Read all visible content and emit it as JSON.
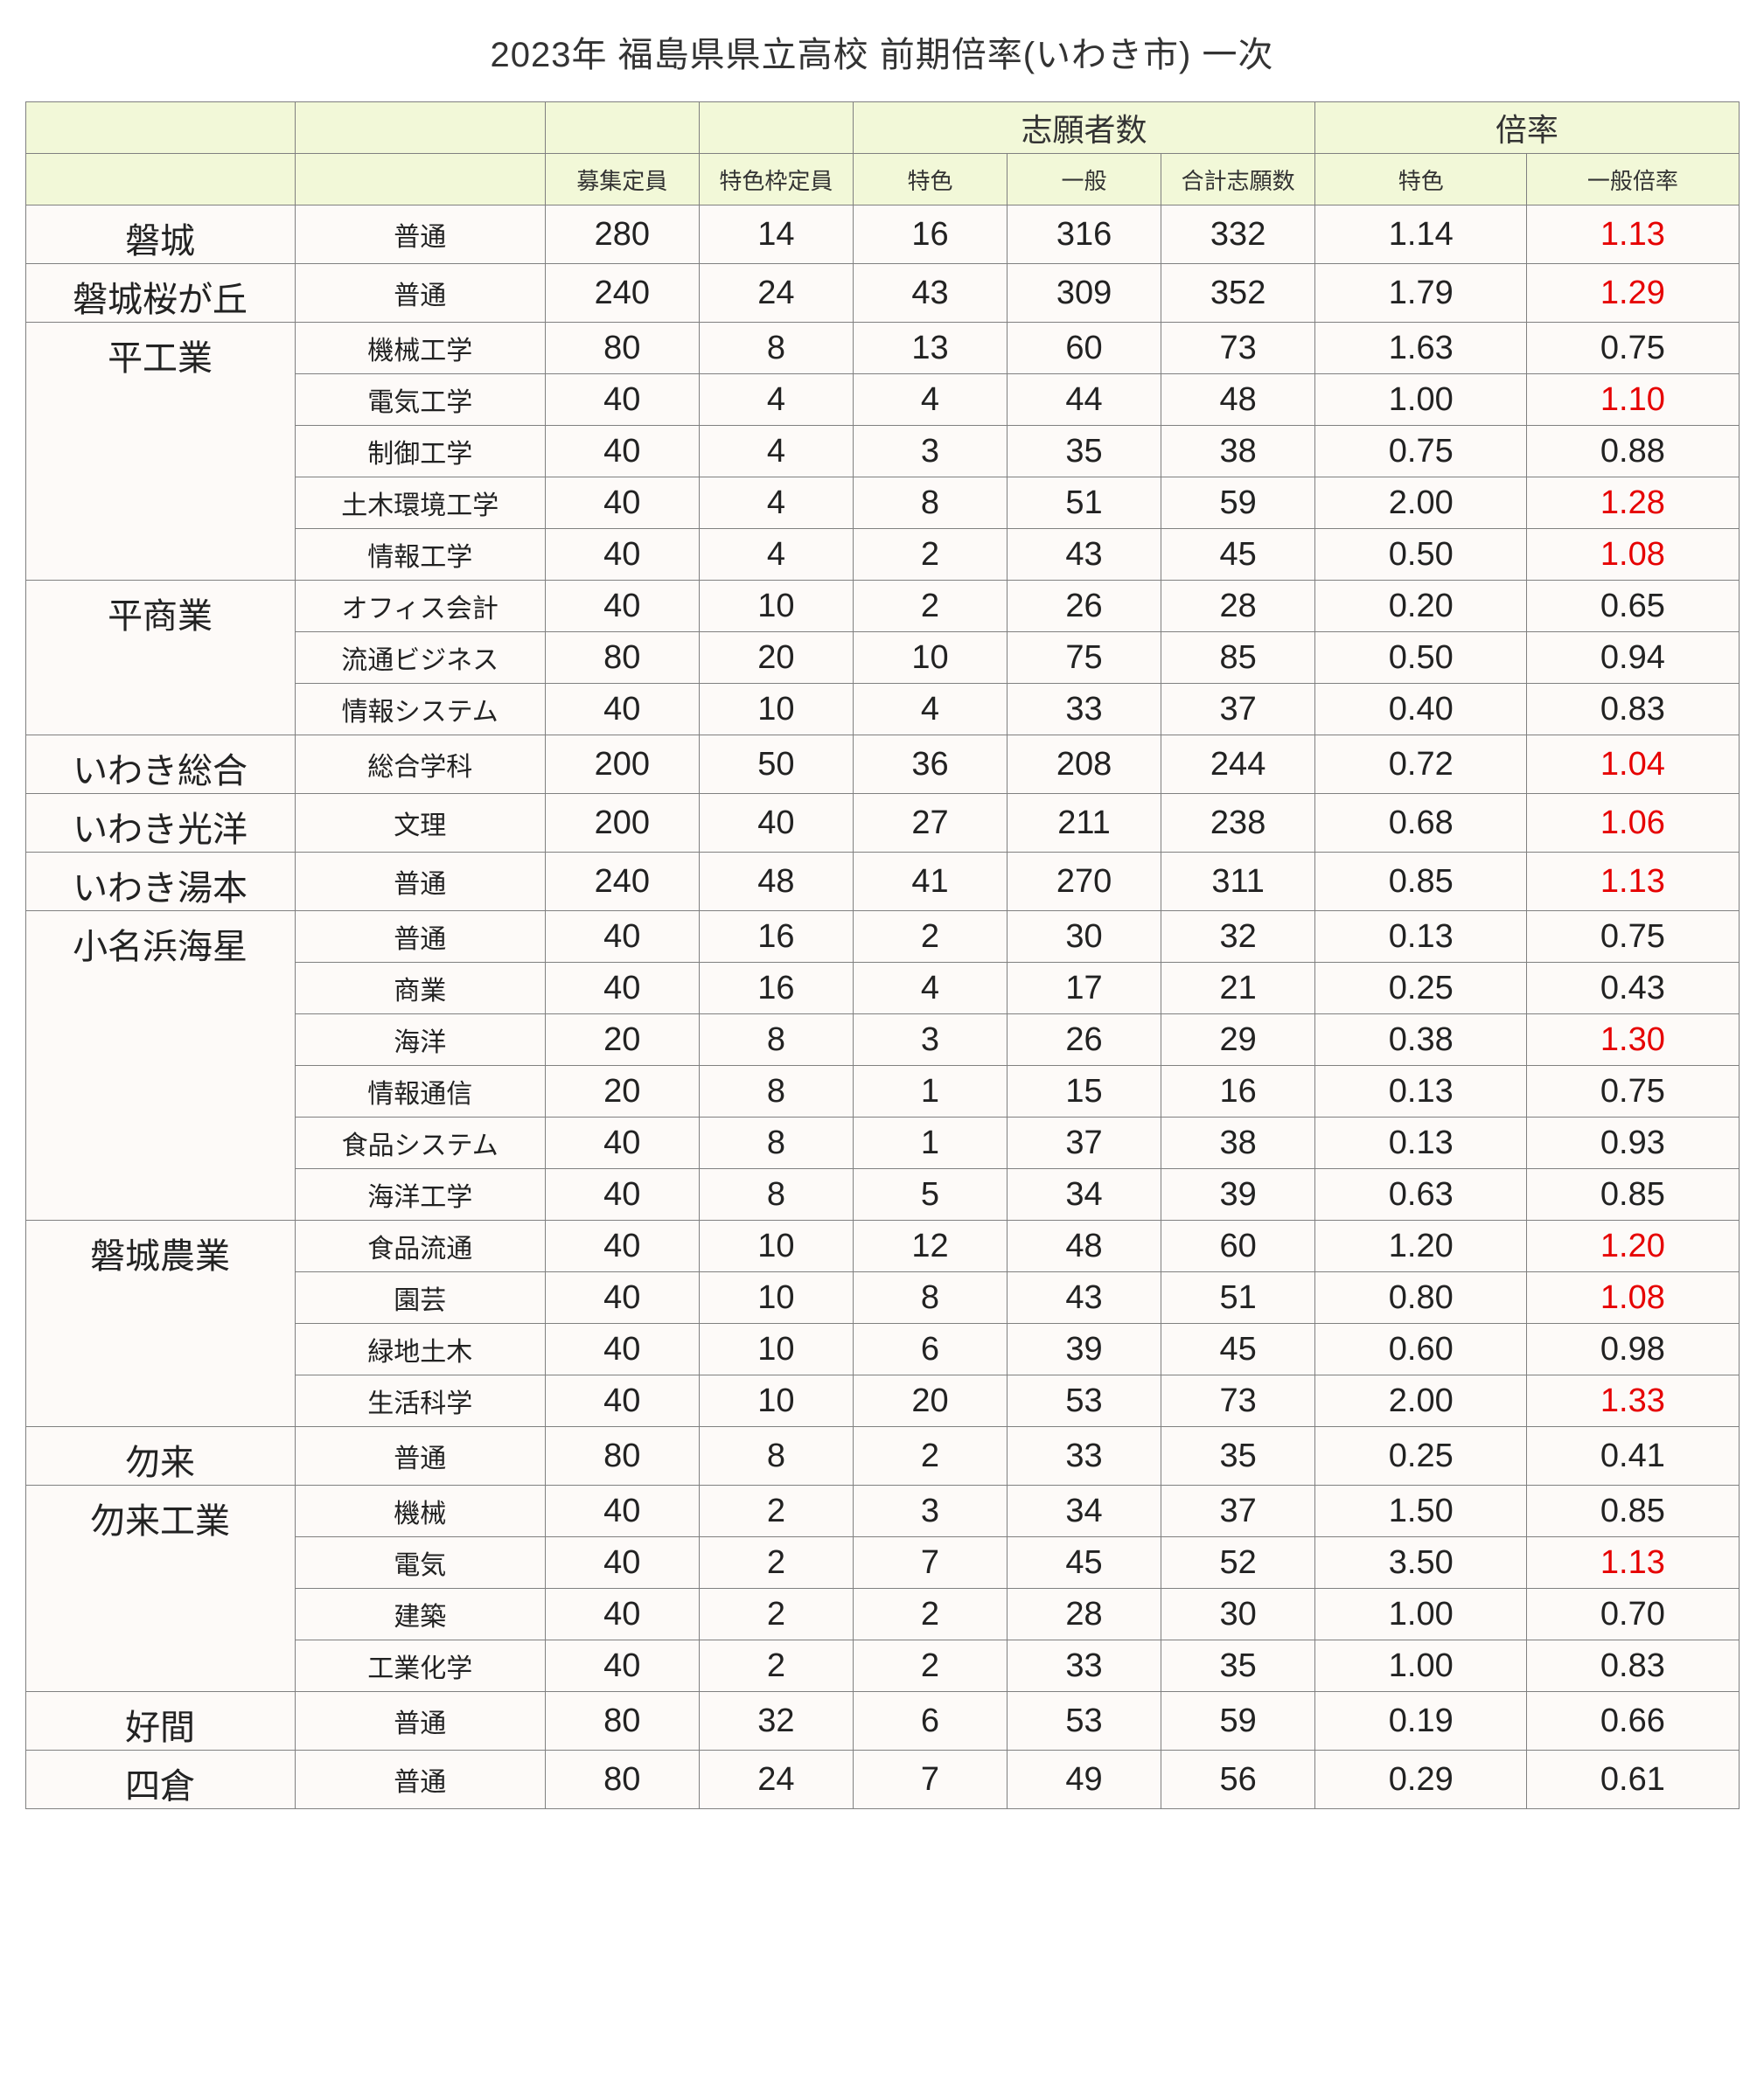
{
  "title": "2023年  福島県県立高校  前期倍率(いわき市) 一次",
  "header": {
    "group_applicants": "志願者数",
    "group_ratio": "倍率",
    "capacity": "募集定員",
    "special_capacity": "特色枠定員",
    "special_apps": "特色",
    "general_apps": "一般",
    "total_apps": "合計志願数",
    "special_ratio": "特色",
    "general_ratio": "一般倍率"
  },
  "colors": {
    "header_bg": "#f2f8d8",
    "row_bg": "#fdfaf8",
    "border": "#808080",
    "text": "#222222",
    "highlight": "#e60000"
  },
  "rows": [
    {
      "school": "磐城",
      "dept": "普通",
      "cap": "280",
      "scap": "14",
      "sapp": "16",
      "gapp": "316",
      "tapp": "332",
      "srat": "1.14",
      "grat": "1.13",
      "grat_red": true,
      "rowspan": 1
    },
    {
      "school": "磐城桜が丘",
      "dept": "普通",
      "cap": "240",
      "scap": "24",
      "sapp": "43",
      "gapp": "309",
      "tapp": "352",
      "srat": "1.79",
      "grat": "1.29",
      "grat_red": true,
      "rowspan": 1
    },
    {
      "school": "平工業",
      "dept": "機械工学",
      "cap": "80",
      "scap": "8",
      "sapp": "13",
      "gapp": "60",
      "tapp": "73",
      "srat": "1.63",
      "grat": "0.75",
      "grat_red": false,
      "rowspan": 5
    },
    {
      "school": "",
      "dept": "電気工学",
      "cap": "40",
      "scap": "4",
      "sapp": "4",
      "gapp": "44",
      "tapp": "48",
      "srat": "1.00",
      "grat": "1.10",
      "grat_red": true,
      "rowspan": 0
    },
    {
      "school": "",
      "dept": "制御工学",
      "cap": "40",
      "scap": "4",
      "sapp": "3",
      "gapp": "35",
      "tapp": "38",
      "srat": "0.75",
      "grat": "0.88",
      "grat_red": false,
      "rowspan": 0
    },
    {
      "school": "",
      "dept": "土木環境工学",
      "cap": "40",
      "scap": "4",
      "sapp": "8",
      "gapp": "51",
      "tapp": "59",
      "srat": "2.00",
      "grat": "1.28",
      "grat_red": true,
      "rowspan": 0
    },
    {
      "school": "",
      "dept": "情報工学",
      "cap": "40",
      "scap": "4",
      "sapp": "2",
      "gapp": "43",
      "tapp": "45",
      "srat": "0.50",
      "grat": "1.08",
      "grat_red": true,
      "rowspan": 0
    },
    {
      "school": "平商業",
      "dept": "オフィス会計",
      "cap": "40",
      "scap": "10",
      "sapp": "2",
      "gapp": "26",
      "tapp": "28",
      "srat": "0.20",
      "grat": "0.65",
      "grat_red": false,
      "rowspan": 3
    },
    {
      "school": "",
      "dept": "流通ビジネス",
      "cap": "80",
      "scap": "20",
      "sapp": "10",
      "gapp": "75",
      "tapp": "85",
      "srat": "0.50",
      "grat": "0.94",
      "grat_red": false,
      "rowspan": 0
    },
    {
      "school": "",
      "dept": "情報システム",
      "cap": "40",
      "scap": "10",
      "sapp": "4",
      "gapp": "33",
      "tapp": "37",
      "srat": "0.40",
      "grat": "0.83",
      "grat_red": false,
      "rowspan": 0
    },
    {
      "school": "いわき総合",
      "dept": "総合学科",
      "cap": "200",
      "scap": "50",
      "sapp": "36",
      "gapp": "208",
      "tapp": "244",
      "srat": "0.72",
      "grat": "1.04",
      "grat_red": true,
      "rowspan": 1
    },
    {
      "school": "いわき光洋",
      "dept": "文理",
      "cap": "200",
      "scap": "40",
      "sapp": "27",
      "gapp": "211",
      "tapp": "238",
      "srat": "0.68",
      "grat": "1.06",
      "grat_red": true,
      "rowspan": 1
    },
    {
      "school": "いわき湯本",
      "dept": "普通",
      "cap": "240",
      "scap": "48",
      "sapp": "41",
      "gapp": "270",
      "tapp": "311",
      "srat": "0.85",
      "grat": "1.13",
      "grat_red": true,
      "rowspan": 1
    },
    {
      "school": "小名浜海星",
      "dept": "普通",
      "cap": "40",
      "scap": "16",
      "sapp": "2",
      "gapp": "30",
      "tapp": "32",
      "srat": "0.13",
      "grat": "0.75",
      "grat_red": false,
      "rowspan": 6
    },
    {
      "school": "",
      "dept": "商業",
      "cap": "40",
      "scap": "16",
      "sapp": "4",
      "gapp": "17",
      "tapp": "21",
      "srat": "0.25",
      "grat": "0.43",
      "grat_red": false,
      "rowspan": 0
    },
    {
      "school": "",
      "dept": "海洋",
      "cap": "20",
      "scap": "8",
      "sapp": "3",
      "gapp": "26",
      "tapp": "29",
      "srat": "0.38",
      "grat": "1.30",
      "grat_red": true,
      "rowspan": 0
    },
    {
      "school": "",
      "dept": "情報通信",
      "cap": "20",
      "scap": "8",
      "sapp": "1",
      "gapp": "15",
      "tapp": "16",
      "srat": "0.13",
      "grat": "0.75",
      "grat_red": false,
      "rowspan": 0
    },
    {
      "school": "",
      "dept": "食品システム",
      "cap": "40",
      "scap": "8",
      "sapp": "1",
      "gapp": "37",
      "tapp": "38",
      "srat": "0.13",
      "grat": "0.93",
      "grat_red": false,
      "rowspan": 0
    },
    {
      "school": "",
      "dept": "海洋工学",
      "cap": "40",
      "scap": "8",
      "sapp": "5",
      "gapp": "34",
      "tapp": "39",
      "srat": "0.63",
      "grat": "0.85",
      "grat_red": false,
      "rowspan": 0
    },
    {
      "school": "磐城農業",
      "dept": "食品流通",
      "cap": "40",
      "scap": "10",
      "sapp": "12",
      "gapp": "48",
      "tapp": "60",
      "srat": "1.20",
      "grat": "1.20",
      "grat_red": true,
      "rowspan": 4
    },
    {
      "school": "",
      "dept": "園芸",
      "cap": "40",
      "scap": "10",
      "sapp": "8",
      "gapp": "43",
      "tapp": "51",
      "srat": "0.80",
      "grat": "1.08",
      "grat_red": true,
      "rowspan": 0
    },
    {
      "school": "",
      "dept": "緑地土木",
      "cap": "40",
      "scap": "10",
      "sapp": "6",
      "gapp": "39",
      "tapp": "45",
      "srat": "0.60",
      "grat": "0.98",
      "grat_red": false,
      "rowspan": 0
    },
    {
      "school": "",
      "dept": "生活科学",
      "cap": "40",
      "scap": "10",
      "sapp": "20",
      "gapp": "53",
      "tapp": "73",
      "srat": "2.00",
      "grat": "1.33",
      "grat_red": true,
      "rowspan": 0
    },
    {
      "school": "勿来",
      "dept": "普通",
      "cap": "80",
      "scap": "8",
      "sapp": "2",
      "gapp": "33",
      "tapp": "35",
      "srat": "0.25",
      "grat": "0.41",
      "grat_red": false,
      "rowspan": 1
    },
    {
      "school": "勿来工業",
      "dept": "機械",
      "cap": "40",
      "scap": "2",
      "sapp": "3",
      "gapp": "34",
      "tapp": "37",
      "srat": "1.50",
      "grat": "0.85",
      "grat_red": false,
      "rowspan": 4
    },
    {
      "school": "",
      "dept": "電気",
      "cap": "40",
      "scap": "2",
      "sapp": "7",
      "gapp": "45",
      "tapp": "52",
      "srat": "3.50",
      "grat": "1.13",
      "grat_red": true,
      "rowspan": 0
    },
    {
      "school": "",
      "dept": "建築",
      "cap": "40",
      "scap": "2",
      "sapp": "2",
      "gapp": "28",
      "tapp": "30",
      "srat": "1.00",
      "grat": "0.70",
      "grat_red": false,
      "rowspan": 0
    },
    {
      "school": "",
      "dept": "工業化学",
      "cap": "40",
      "scap": "2",
      "sapp": "2",
      "gapp": "33",
      "tapp": "35",
      "srat": "1.00",
      "grat": "0.83",
      "grat_red": false,
      "rowspan": 0
    },
    {
      "school": "好間",
      "dept": "普通",
      "cap": "80",
      "scap": "32",
      "sapp": "6",
      "gapp": "53",
      "tapp": "59",
      "srat": "0.19",
      "grat": "0.66",
      "grat_red": false,
      "rowspan": 1
    },
    {
      "school": "四倉",
      "dept": "普通",
      "cap": "80",
      "scap": "24",
      "sapp": "7",
      "gapp": "49",
      "tapp": "56",
      "srat": "0.29",
      "grat": "0.61",
      "grat_red": false,
      "rowspan": 1
    }
  ]
}
